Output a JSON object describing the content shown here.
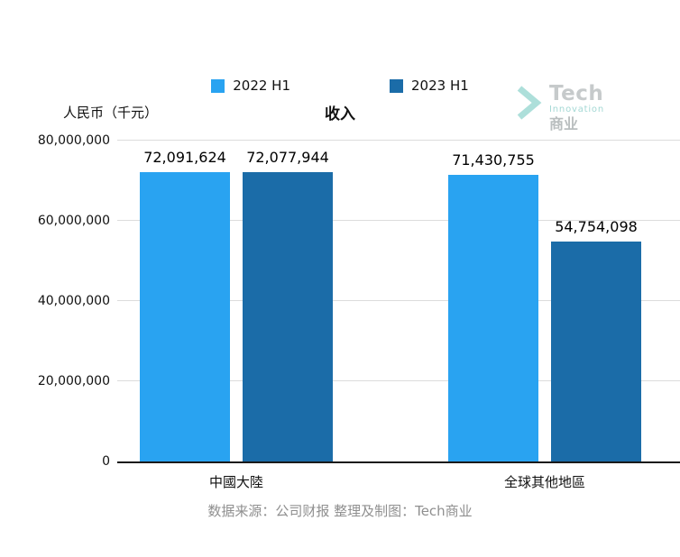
{
  "brand": {
    "logo_line1": "Tech",
    "logo_line2": "Innovation",
    "logo_line3": "商业",
    "chevron_color": "#a9ded9"
  },
  "chart_data": {
    "type": "bar",
    "title": "收入",
    "unit_label": "人民币（千元）",
    "categories": [
      "中國大陸",
      "全球其他地區"
    ],
    "series": [
      {
        "name": "2022 H1",
        "color": "#29a3f1",
        "values": [
          72091624,
          71430755
        ]
      },
      {
        "name": "2023 H1",
        "color": "#1b6ca8",
        "values": [
          72077944,
          54754098
        ]
      }
    ],
    "value_labels": [
      [
        "72,091,624",
        "71,430,755"
      ],
      [
        "72,077,944",
        "54,754,098"
      ]
    ],
    "ylim": [
      0,
      80000000
    ],
    "yticks": [
      "0",
      "20,000,000",
      "40,000,000",
      "60,000,000",
      "80,000,000"
    ],
    "grid": true,
    "legend_position": "top"
  },
  "footer": {
    "text": "数据来源：公司财报 整理及制图：Tech商业"
  }
}
